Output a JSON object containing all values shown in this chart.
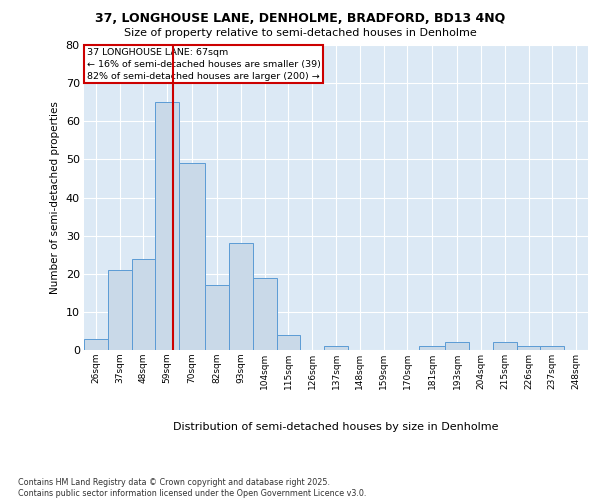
{
  "title_line1": "37, LONGHOUSE LANE, DENHOLME, BRADFORD, BD13 4NQ",
  "title_line2": "Size of property relative to semi-detached houses in Denholme",
  "xlabel": "Distribution of semi-detached houses by size in Denholme",
  "ylabel": "Number of semi-detached properties",
  "footnote": "Contains HM Land Registry data © Crown copyright and database right 2025.\nContains public sector information licensed under the Open Government Licence v3.0.",
  "annotation_title": "37 LONGHOUSE LANE: 67sqm",
  "annotation_line1": "← 16% of semi-detached houses are smaller (39)",
  "annotation_line2": "82% of semi-detached houses are larger (200) →",
  "property_size": 67,
  "vline_x": 67,
  "bar_color": "#c9d9e8",
  "bar_edge_color": "#5b9bd5",
  "vline_color": "#cc0000",
  "annotation_box_color": "#cc0000",
  "background_color": "#dce9f5",
  "fig_background": "#ffffff",
  "categories": [
    "26sqm",
    "37sqm",
    "48sqm",
    "59sqm",
    "70sqm",
    "82sqm",
    "93sqm",
    "104sqm",
    "115sqm",
    "126sqm",
    "137sqm",
    "148sqm",
    "159sqm",
    "170sqm",
    "181sqm",
    "193sqm",
    "204sqm",
    "215sqm",
    "226sqm",
    "237sqm",
    "248sqm"
  ],
  "bin_edges": [
    26,
    37,
    48,
    59,
    70,
    82,
    93,
    104,
    115,
    126,
    137,
    148,
    159,
    170,
    181,
    193,
    204,
    215,
    226,
    237,
    248,
    259
  ],
  "values": [
    3,
    21,
    24,
    65,
    49,
    17,
    28,
    19,
    4,
    0,
    1,
    0,
    0,
    0,
    1,
    2,
    0,
    2,
    1,
    1,
    0
  ],
  "ylim": [
    0,
    80
  ],
  "yticks": [
    0,
    10,
    20,
    30,
    40,
    50,
    60,
    70,
    80
  ],
  "grid_color": "#ffffff",
  "tick_color": "#555555",
  "spine_color": "#aaaaaa"
}
